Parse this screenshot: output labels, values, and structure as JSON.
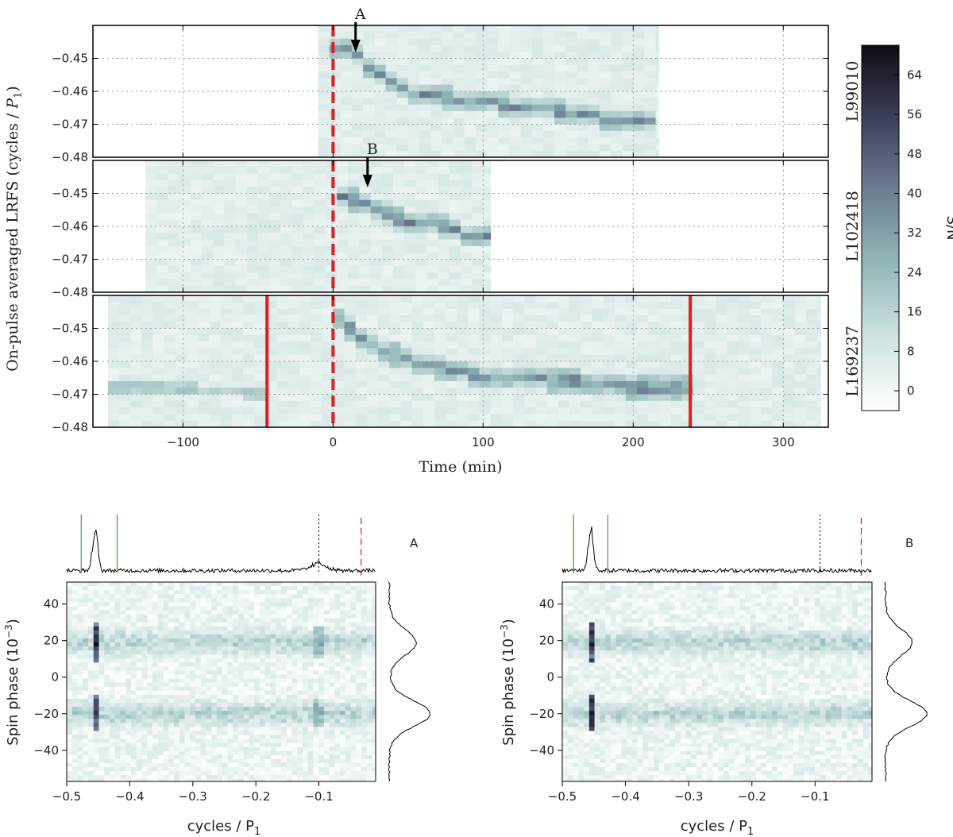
{
  "colors": {
    "cmap_low": "#ffffff",
    "cmap_mid": "#a7c9c8",
    "cmap_high": "#0d0d12",
    "red_marker": "#e41a1c",
    "green_marker": "#3aa23a",
    "trace": "#000000"
  },
  "chart_data": [
    {
      "type": "heatmap",
      "title": "",
      "xlabel": "Time (min)",
      "ylabel": "On-pulse averaged LRFS  (cycles / P1)",
      "xlim": [
        -160,
        330
      ],
      "ylim": [
        -0.48,
        -0.44
      ],
      "xticks": [
        "−100",
        "0",
        "100",
        "200",
        "300"
      ],
      "xtick_values": [
        -100,
        0,
        100,
        200,
        300
      ],
      "yticks": [
        "−0.45",
        "−0.46",
        "−0.47",
        "−0.48"
      ],
      "ytick_values": [
        -0.45,
        -0.46,
        -0.47,
        -0.48
      ],
      "colorbar": {
        "label": "S/N",
        "range": [
          -4,
          70
        ],
        "ticks": [
          "64",
          "56",
          "48",
          "40",
          "32",
          "24",
          "16",
          "8",
          "0"
        ],
        "tick_values": [
          64,
          56,
          48,
          40,
          32,
          24,
          16,
          8,
          0
        ]
      },
      "panels": [
        {
          "name": "L99010",
          "x_range": [
            -10,
            217
          ],
          "drift_track": [
            [
              0,
              -0.4478
            ],
            [
              15,
              -0.4478
            ],
            [
              25,
              -0.4545
            ],
            [
              40,
              -0.4575
            ],
            [
              50,
              -0.46
            ],
            [
              70,
              -0.4615
            ],
            [
              85,
              -0.4625
            ],
            [
              100,
              -0.463
            ],
            [
              130,
              -0.465
            ],
            [
              160,
              -0.4665
            ],
            [
              190,
              -0.469
            ],
            [
              217,
              -0.469
            ]
          ],
          "peak_sn": 40,
          "marker": {
            "label": "A",
            "time": 15
          },
          "red_solid_lines": [],
          "red_dashed_line": 0
        },
        {
          "name": "L102418",
          "x_range": [
            -125,
            105
          ],
          "drift_track": [
            [
              0,
              -0.4505
            ],
            [
              10,
              -0.4515
            ],
            [
              25,
              -0.4535
            ],
            [
              35,
              -0.4555
            ],
            [
              50,
              -0.4595
            ],
            [
              70,
              -0.4595
            ],
            [
              85,
              -0.4615
            ],
            [
              95,
              -0.4635
            ],
            [
              105,
              -0.4635
            ]
          ],
          "peak_sn": 42,
          "marker": {
            "label": "B",
            "time": 23
          },
          "red_solid_lines": [],
          "red_dashed_line": 0
        },
        {
          "name": "L169237",
          "x_range": [
            -150,
            325
          ],
          "drift_track": [
            [
              0,
              -0.4455
            ],
            [
              15,
              -0.4515
            ],
            [
              30,
              -0.4555
            ],
            [
              50,
              -0.46
            ],
            [
              70,
              -0.462
            ],
            [
              95,
              -0.464
            ],
            [
              120,
              -0.465
            ],
            [
              150,
              -0.466
            ],
            [
              180,
              -0.4665
            ],
            [
              200,
              -0.468
            ],
            [
              238,
              -0.468
            ]
          ],
          "pre_track": [
            [
              -150,
              -0.468
            ],
            [
              -90,
              -0.468
            ],
            [
              -60,
              -0.47
            ],
            [
              -45,
              -0.47
            ]
          ],
          "peak_sn": 38,
          "red_solid_lines": [
            -44,
            238
          ],
          "red_dashed_line": 0
        }
      ]
    },
    {
      "type": "heatmap",
      "panel_label": "A",
      "xlabel": "cycles / P1",
      "ylabel": "Spin phase (10−3)",
      "xlim": [
        -0.5,
        -0.01
      ],
      "ylim": [
        -57,
        52
      ],
      "xticks": [
        "−0.5",
        "−0.4",
        "−0.3",
        "−0.2",
        "−0.1"
      ],
      "xtick_values": [
        -0.5,
        -0.4,
        -0.3,
        -0.2,
        -0.1
      ],
      "yticks": [
        "40",
        "20",
        "0",
        "−20",
        "−40"
      ],
      "ytick_values": [
        40,
        20,
        0,
        -20,
        -40
      ],
      "bands_spin_phase": [
        -20,
        19
      ],
      "spike_x": -0.455,
      "green_lines": [
        -0.477,
        -0.42
      ],
      "black_dotted_line": -0.1,
      "red_dashed_line": -0.033,
      "secondary_feature_x": -0.1
    },
    {
      "type": "heatmap",
      "panel_label": "B",
      "xlabel": "cycles / P1",
      "ylabel": "Spin phase (10−3)",
      "xlim": [
        -0.5,
        -0.01
      ],
      "ylim": [
        -57,
        52
      ],
      "xticks": [
        "−0.5",
        "−0.4",
        "−0.3",
        "−0.2",
        "−0.1"
      ],
      "xtick_values": [
        -0.5,
        -0.4,
        -0.3,
        -0.2,
        -0.1
      ],
      "yticks": [
        "40",
        "20",
        "0",
        "−20",
        "−40"
      ],
      "ytick_values": [
        40,
        20,
        0,
        -20,
        -40
      ],
      "bands_spin_phase": [
        -20,
        19
      ],
      "spike_x": -0.455,
      "green_lines": [
        -0.482,
        -0.428
      ],
      "black_dotted_line": -0.092,
      "red_dashed_line": -0.027,
      "secondary_feature_x": null
    }
  ],
  "labels": {
    "top_ylabel_main": "On-pulse averaged LRFS  (cycles / ",
    "top_ylabel_P": "P",
    "top_ylabel_sub": "1",
    "top_ylabel_close": ")",
    "top_xlabel": "Time (min)",
    "cbar_label": "S/N",
    "bottom_xlabel_main": "cycles / P",
    "bottom_xlabel_sub": "1",
    "bottom_ylabel_main": "Spin phase (10",
    "bottom_ylabel_sup": "−3",
    "bottom_ylabel_close": ")"
  }
}
